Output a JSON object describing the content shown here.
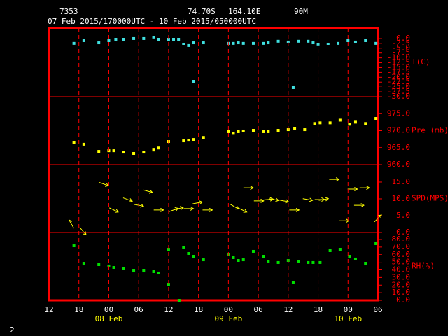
{
  "header": {
    "station": "7353",
    "lat": "74.70S",
    "lon": "164.10E",
    "elev": "90M",
    "period": "07 Feb 2015/170000UTC - 10 Feb 2015/050000UTC"
  },
  "footer": {
    "page": "2"
  },
  "chart_data": [
    {
      "type": "scatter",
      "ylabel": "T(C)",
      "color": "#40e0e0",
      "x": [
        5,
        7,
        10,
        12,
        13.4,
        15,
        17,
        19,
        21,
        22,
        24,
        25,
        26,
        27,
        28,
        29,
        29,
        31,
        36,
        37,
        38,
        39,
        41,
        43,
        44,
        46,
        48,
        49,
        50,
        52,
        53,
        54,
        56,
        58,
        60,
        61.5,
        63.5,
        65.6
      ],
      "values": [
        -2.5,
        -1.1,
        -2.2,
        -1.1,
        -0.4,
        -0.4,
        0,
        0,
        0.4,
        -0.4,
        -0.7,
        -0.4,
        -0.4,
        -2.9,
        -3.6,
        -2.2,
        -22.4,
        -2.2,
        -2.5,
        -2.5,
        -2.2,
        -2.5,
        -2.5,
        -2.5,
        -2.2,
        -1.4,
        -1.8,
        -25.3,
        -1.4,
        -1.4,
        -2.2,
        -3.2,
        -2.9,
        -2.5,
        -1.1,
        -1.8,
        -1.1,
        -2.5
      ],
      "xlim": [
        0,
        66
      ],
      "ylim": [
        -30,
        5.4
      ],
      "yticks": [
        {
          "value": 0,
          "label": "0.0"
        },
        {
          "value": -2.5,
          "label": "-2.5"
        },
        {
          "value": -5,
          "label": "-5.0"
        },
        {
          "value": -7.5,
          "label": "-7.5"
        },
        {
          "value": -10,
          "label": "-10.0"
        },
        {
          "value": -12.5,
          "label": "-12.5"
        },
        {
          "value": -15,
          "label": "-15.0"
        },
        {
          "value": -17.5,
          "label": "-17.5"
        },
        {
          "value": -20,
          "label": "-20.0"
        },
        {
          "value": -22.5,
          "label": "-22.5"
        },
        {
          "value": -25,
          "label": "-25.0"
        },
        {
          "value": -27.5,
          "label": "-27.5"
        },
        {
          "value": -30,
          "label": "-30.0"
        }
      ]
    },
    {
      "type": "scatter",
      "ylabel": "Pre (mb)",
      "color": "#ffff00",
      "x": [
        5,
        7,
        10,
        12,
        13,
        15,
        17,
        19,
        21,
        22,
        24,
        27,
        28,
        29,
        31,
        36,
        37,
        38,
        39,
        41,
        43,
        44,
        46,
        48,
        49.3,
        51.3,
        53.3,
        54.4,
        56.4,
        58.4,
        60.3,
        61.5,
        63.5,
        65.6
      ],
      "values": [
        966.4,
        966.0,
        963.9,
        964.1,
        964.1,
        963.7,
        963.3,
        963.7,
        964.3,
        964.9,
        966.8,
        967.0,
        967.2,
        967.4,
        968.0,
        969.7,
        969.2,
        969.7,
        969.9,
        970.1,
        969.7,
        969.7,
        970.1,
        970.3,
        970.7,
        970.3,
        972.1,
        972.3,
        972.3,
        973.1,
        971.9,
        972.5,
        972.1,
        973.6
      ],
      "xlim": [
        0,
        66
      ],
      "ylim": [
        960,
        980
      ],
      "yticks": [
        {
          "value": 960,
          "label": "960.0"
        },
        {
          "value": 965,
          "label": "965.0"
        },
        {
          "value": 970,
          "label": "970.0"
        },
        {
          "value": 975,
          "label": "975.0"
        }
      ]
    },
    {
      "type": "quiver",
      "ylabel": "SPD(MPS)",
      "color": "#ffff00",
      "x": [
        4.5,
        6.8,
        11,
        13,
        15.8,
        18,
        19.8,
        22,
        25,
        26,
        28,
        29.8,
        31.8,
        37.2,
        38.8,
        40,
        42.1,
        44,
        45.1,
        47.1,
        49.2,
        51.9,
        54.3,
        55.1,
        57.2,
        59.2,
        60.9,
        63.3,
        62.2,
        66
      ],
      "values": [
        2.5,
        0.4,
        14.4,
        6.7,
        9.8,
        8.1,
        12.3,
        6.7,
        6.7,
        7.1,
        7.1,
        8.8,
        6.7,
        7.7,
        6.7,
        13.3,
        9.4,
        9.8,
        9.8,
        9.4,
        6.7,
        9.8,
        9.8,
        9.8,
        15.8,
        3.5,
        12.9,
        13.3,
        8.1,
        4.2
      ],
      "angles": [
        -120,
        50,
        20,
        25,
        20,
        10,
        15,
        0,
        -20,
        -15,
        0,
        -10,
        0,
        30,
        25,
        0,
        0,
        -5,
        10,
        10,
        0,
        10,
        0,
        -10,
        0,
        0,
        0,
        0,
        0,
        -45
      ],
      "xlim": [
        0,
        66
      ],
      "ylim": [
        0,
        20.2
      ],
      "yticks": [
        {
          "value": 0,
          "label": "0.0"
        },
        {
          "value": 5,
          "label": "5.0"
        },
        {
          "value": 10,
          "label": "10.0"
        },
        {
          "value": 15,
          "label": "15.0"
        }
      ]
    },
    {
      "type": "scatter",
      "ylabel": "RH(%)",
      "color": "#00e000",
      "x": [
        5,
        7,
        10,
        12,
        13,
        15,
        17,
        19,
        21,
        22,
        24,
        24,
        26.1,
        27,
        28,
        29,
        31,
        36,
        37,
        38,
        39,
        41,
        43,
        44,
        46,
        48,
        49,
        50,
        52,
        53,
        54.4,
        56.4,
        58.4,
        60.3,
        61.5,
        63.5,
        65.6
      ],
      "values": [
        71.7,
        47.8,
        46.9,
        45.1,
        43.2,
        41.4,
        38.6,
        38.6,
        37.7,
        35.9,
        66.2,
        21.1,
        0,
        69.0,
        61.6,
        57.0,
        53.3,
        59.8,
        56.1,
        52.4,
        53.3,
        64.4,
        57.0,
        50.6,
        49.7,
        52.4,
        23.0,
        50.6,
        49.7,
        49.7,
        49.7,
        65.3,
        66.2,
        57.0,
        54.3,
        47.8,
        74.5
      ],
      "xlim": [
        0,
        66
      ],
      "ylim": [
        0,
        89.2
      ],
      "yticks": [
        {
          "value": 0,
          "label": "0.0"
        },
        {
          "value": 10,
          "label": "10.0"
        },
        {
          "value": 20,
          "label": "20.0"
        },
        {
          "value": 30,
          "label": "30.0"
        },
        {
          "value": 40,
          "label": "40.0"
        },
        {
          "value": 50,
          "label": "50.0"
        },
        {
          "value": 60,
          "label": "60.0"
        },
        {
          "value": 70,
          "label": "70.0"
        },
        {
          "value": 80,
          "label": "80.0"
        }
      ],
      "xticks": [
        {
          "value": 0,
          "label": "12"
        },
        {
          "value": 6,
          "label": "18"
        },
        {
          "value": 12,
          "label": "00"
        },
        {
          "value": 18,
          "label": "06"
        },
        {
          "value": 24,
          "label": "12"
        },
        {
          "value": 30,
          "label": "18"
        },
        {
          "value": 36,
          "label": "00"
        },
        {
          "value": 42,
          "label": "06"
        },
        {
          "value": 48,
          "label": "12"
        },
        {
          "value": 54,
          "label": "18"
        },
        {
          "value": 60,
          "label": "00"
        },
        {
          "value": 66,
          "label": "06"
        }
      ],
      "x_dates": [
        {
          "value": 12,
          "label": "08 Feb"
        },
        {
          "value": 36,
          "label": "09 Feb"
        },
        {
          "value": 60,
          "label": "10 Feb"
        }
      ]
    }
  ]
}
